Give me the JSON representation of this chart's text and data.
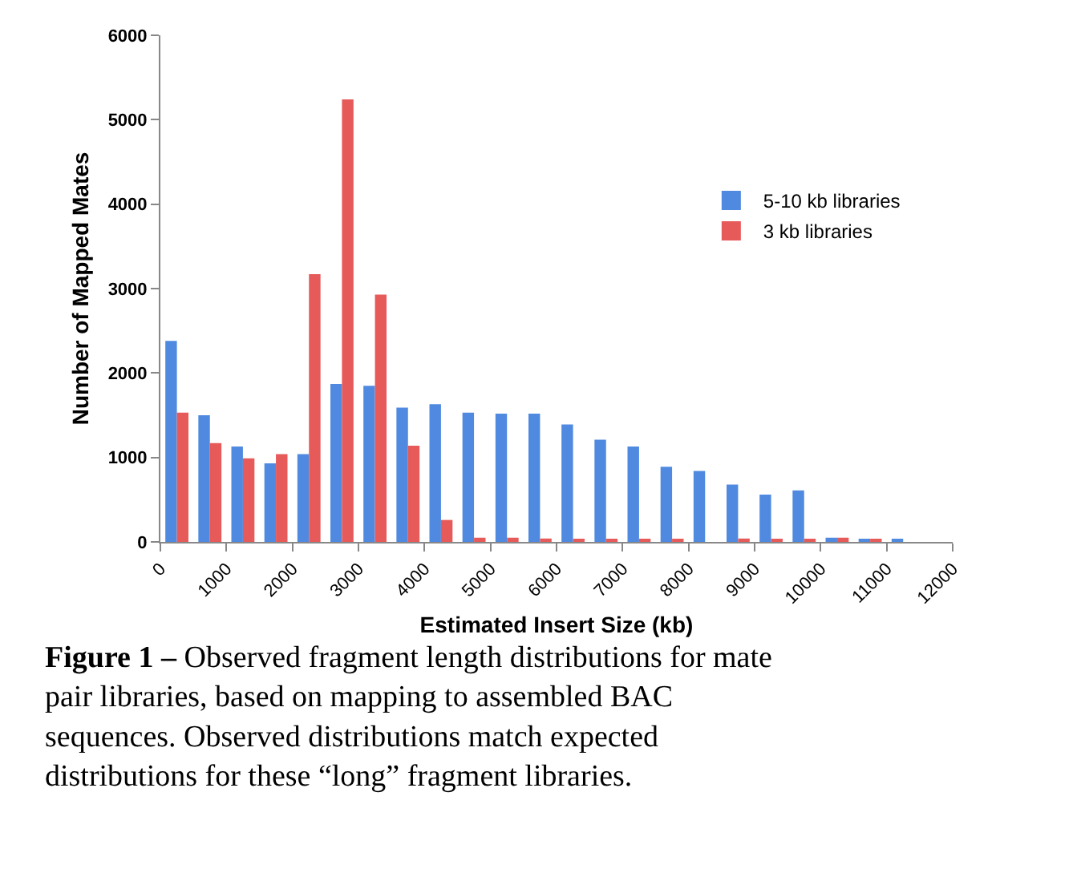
{
  "chart_data": {
    "type": "histogram",
    "xlabel": "Estimated Insert Size (kb)",
    "ylabel": "Number of Mapped Mates",
    "bins": [
      0,
      500,
      1000,
      1500,
      2000,
      2500,
      3000,
      3500,
      4000,
      4500,
      5000,
      5500,
      6000,
      6500,
      7000,
      7500,
      8000,
      8500,
      9000,
      9500,
      10000,
      10500,
      11000,
      11500,
      12000
    ],
    "series": [
      {
        "name": "5-10 kb libraries",
        "color": "#4f8ae0",
        "values": [
          2380,
          1500,
          1130,
          930,
          1040,
          1870,
          1850,
          1590,
          1630,
          1530,
          1520,
          1520,
          1390,
          1210,
          1130,
          890,
          840,
          680,
          560,
          610,
          50,
          20,
          20,
          0
        ]
      },
      {
        "name": "3 kb libraries",
        "color": "#e65a5a",
        "values": [
          1530,
          1170,
          990,
          1040,
          3170,
          5240,
          2930,
          1140,
          260,
          50,
          50,
          40,
          20,
          20,
          20,
          20,
          0,
          40,
          20,
          20,
          50,
          20,
          0,
          0
        ]
      }
    ],
    "xlim": [
      0,
      12000
    ],
    "xticks": [
      0,
      1000,
      2000,
      3000,
      4000,
      5000,
      6000,
      7000,
      8000,
      9000,
      10000,
      11000,
      12000
    ],
    "ylim": [
      0,
      6000
    ],
    "yticks": [
      0,
      1000,
      2000,
      3000,
      4000,
      5000,
      6000
    ],
    "legend": "right",
    "annotations": [
      "**Figure 1 –** Observed fragment length distributions for mate pair libraries, based on mapping to assembled BAC sequences. Observed distributions match expected distributions for these “long” fragment libraries."
    ]
  }
}
